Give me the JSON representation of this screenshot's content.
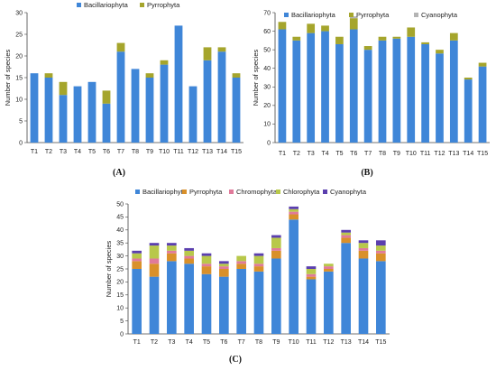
{
  "chart_data": [
    {
      "id": "A",
      "panel_label": "(A)",
      "type": "bar",
      "stacked": true,
      "ylabel": "Number of species",
      "xlabel": "",
      "ylim": [
        0,
        30
      ],
      "yticks": [
        0,
        5,
        10,
        15,
        20,
        25,
        30
      ],
      "grid": false,
      "legend_position": "top",
      "categories": [
        "T1",
        "T2",
        "T3",
        "T4",
        "T5",
        "T6",
        "T7",
        "T8",
        "T9",
        "T10",
        "T11",
        "T12",
        "T13",
        "T14",
        "T15"
      ],
      "series": [
        {
          "name": "Bacillariophyta",
          "color": "#3f86d8",
          "values": [
            16,
            15,
            11,
            13,
            14,
            9,
            21,
            17,
            15,
            18,
            27,
            13,
            19,
            21,
            15
          ]
        },
        {
          "name": "Pyrrophyta",
          "color": "#a5a52c",
          "values": [
            0,
            1,
            3,
            0,
            0,
            3,
            2,
            0,
            1,
            1,
            0,
            0,
            3,
            1,
            1
          ]
        }
      ]
    },
    {
      "id": "B",
      "panel_label": "(B)",
      "type": "bar",
      "stacked": true,
      "ylabel": "Number of species",
      "xlabel": "",
      "ylim": [
        0,
        70
      ],
      "yticks": [
        0,
        10,
        20,
        30,
        40,
        50,
        60,
        70
      ],
      "grid": false,
      "legend_position": "top",
      "categories": [
        "T1",
        "T2",
        "T3",
        "T4",
        "T5",
        "T6",
        "T7",
        "T8",
        "T9",
        "T10",
        "T11",
        "T12",
        "T13",
        "T14",
        "T15"
      ],
      "series": [
        {
          "name": "Bacillariophyta",
          "color": "#3f86d8",
          "values": [
            61,
            55,
            59,
            60,
            53,
            61,
            50,
            55,
            56,
            57,
            53,
            48,
            55,
            34,
            41
          ]
        },
        {
          "name": "Pyrrophyta",
          "color": "#a5a52c",
          "values": [
            4,
            2,
            5,
            3,
            4,
            6,
            2,
            2,
            1,
            5,
            1,
            2,
            4,
            1,
            2
          ]
        },
        {
          "name": "Cyanophyta",
          "color": "#b4b4b4",
          "values": [
            0,
            0,
            0,
            0,
            0,
            1,
            0,
            0,
            0,
            0,
            0,
            0,
            0,
            0,
            0
          ]
        }
      ]
    },
    {
      "id": "C",
      "panel_label": "(C)",
      "type": "bar",
      "stacked": true,
      "ylabel": "Number of species",
      "xlabel": "",
      "ylim": [
        0,
        50
      ],
      "yticks": [
        0,
        5,
        10,
        15,
        20,
        25,
        30,
        35,
        40,
        45,
        50
      ],
      "grid": false,
      "legend_position": "top",
      "categories": [
        "T1",
        "T2",
        "T3",
        "T4",
        "T5",
        "T6",
        "T7",
        "T8",
        "T9",
        "T10",
        "T11",
        "T12",
        "T13",
        "T14",
        "T15"
      ],
      "series": [
        {
          "name": "Bacillariophyta",
          "color": "#3f86d8",
          "values": [
            25,
            22,
            28,
            27,
            23,
            22,
            25,
            24,
            29,
            44,
            21,
            24,
            35,
            29,
            28
          ]
        },
        {
          "name": "Pyrrophyta",
          "color": "#d9902a",
          "values": [
            3,
            5,
            3,
            2,
            3,
            3,
            2,
            2,
            3,
            2,
            1,
            1,
            2,
            3,
            3
          ]
        },
        {
          "name": "Chromophyta",
          "color": "#e07a9a",
          "values": [
            1,
            2,
            1,
            1,
            1,
            1,
            1,
            1,
            1,
            1,
            1,
            1,
            1,
            1,
            1
          ]
        },
        {
          "name": "Chlorophyta",
          "color": "#b8c84a",
          "values": [
            2,
            5,
            2,
            2,
            3,
            1,
            2,
            3,
            4,
            1,
            2,
            1,
            1,
            2,
            2
          ]
        },
        {
          "name": "Cyanophyta",
          "color": "#5b3fae",
          "values": [
            1,
            1,
            1,
            1,
            1,
            1,
            0,
            1,
            1,
            1,
            1,
            0,
            1,
            1,
            2
          ]
        }
      ]
    }
  ]
}
